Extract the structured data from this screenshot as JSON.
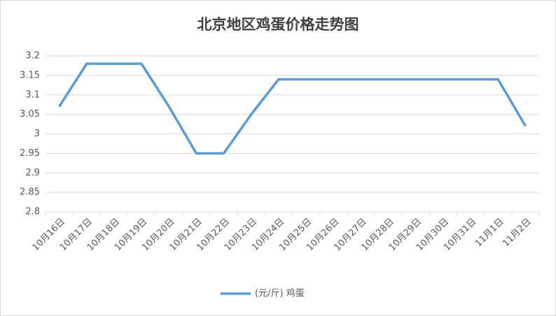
{
  "chart_data": {
    "type": "line",
    "title": "北京地区鸡蛋价格走势图",
    "categories": [
      "10月16日",
      "10月17日",
      "10月18日",
      "10月19日",
      "10月20日",
      "10月21日",
      "10月22日",
      "10月23日",
      "10月24日",
      "10月25日",
      "10月26日",
      "10月27日",
      "10月28日",
      "10月29日",
      "10月30日",
      "10月31日",
      "11月1日",
      "11月2日"
    ],
    "series": [
      {
        "name": "(元/斤) 鸡蛋",
        "color": "#5b9bd5",
        "values": [
          3.07,
          3.18,
          3.18,
          3.18,
          3.07,
          2.95,
          2.95,
          3.05,
          3.14,
          3.14,
          3.14,
          3.14,
          3.14,
          3.14,
          3.14,
          3.14,
          3.14,
          3.02
        ]
      }
    ],
    "ylim": [
      2.8,
      3.2
    ],
    "yticks": [
      2.8,
      2.85,
      2.9,
      2.95,
      3,
      3.05,
      3.1,
      3.15,
      3.2
    ],
    "grid": true,
    "legend": "bottom"
  }
}
